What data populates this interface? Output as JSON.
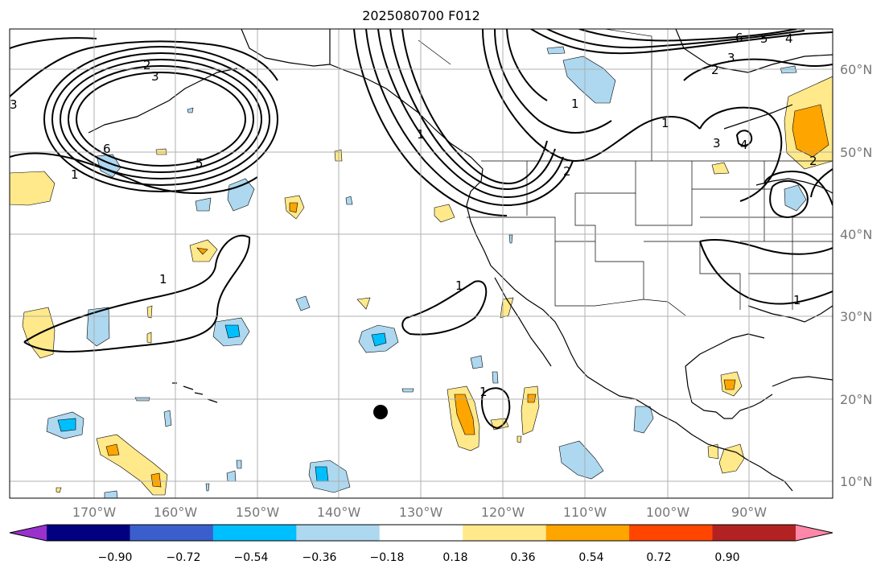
{
  "title": "2025080700 F012",
  "longitude_labels": [
    "170°W",
    "160°W",
    "150°W",
    "140°W",
    "130°W",
    "120°W",
    "110°W",
    "100°W",
    "90°W"
  ],
  "latitude_labels": [
    "60°N",
    "50°N",
    "40°N",
    "30°N",
    "20°N",
    "10°N"
  ],
  "colorbar": {
    "tick_labels": [
      "−0.90",
      "−0.72",
      "−0.54",
      "−0.36",
      "−0.18",
      "0.18",
      "0.36",
      "0.54",
      "0.72",
      "0.90"
    ],
    "colors": [
      "#9932cc",
      "#000080",
      "#3a5fcd",
      "#00bfff",
      "#add8f0",
      "#ffffff",
      "#ffe98a",
      "#ffa500",
      "#ff4500",
      "#b22222",
      "#ff88aa"
    ]
  },
  "contour_labels": [
    "2",
    "3",
    "6",
    "5",
    "3",
    "1",
    "1",
    "1",
    "2",
    "1",
    "6",
    "5",
    "4",
    "3",
    "2",
    "1",
    "4",
    "3",
    "2",
    "1",
    "1",
    "1"
  ],
  "colors": {
    "contour": "#000000",
    "grid": "#aaaaaa",
    "marker": "#000000"
  }
}
